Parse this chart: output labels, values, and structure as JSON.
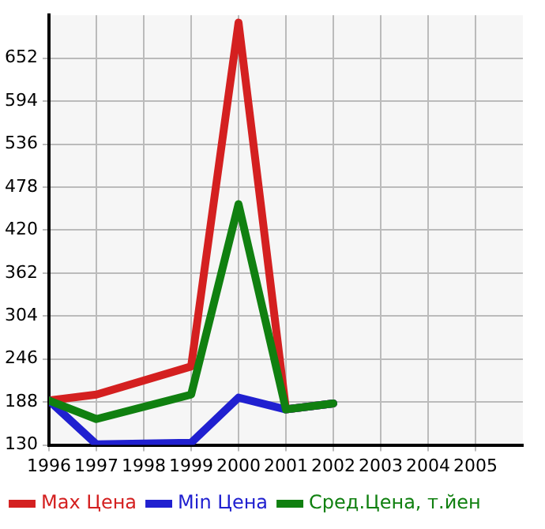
{
  "chart_data": {
    "type": "line",
    "xlim": [
      1996,
      2006
    ],
    "xticks": [
      1996,
      1997,
      1998,
      1999,
      2000,
      2001,
      2002,
      2003,
      2004,
      2005
    ],
    "ylim": [
      130,
      710
    ],
    "yticks": [
      130,
      188,
      246,
      304,
      362,
      420,
      478,
      536,
      594,
      652
    ],
    "grid": true,
    "legend": "bottom",
    "marker": "none",
    "series": [
      {
        "name": "Max Цена",
        "color": "#d42020",
        "x": [
          1996,
          1997,
          1999,
          2000,
          2001,
          2002
        ],
        "values": [
          190,
          198,
          236,
          700,
          178,
          186
        ]
      },
      {
        "name": "Min Цена",
        "color": "#2020d0",
        "x": [
          1996,
          1997,
          1999,
          2000,
          2001,
          2002
        ],
        "values": [
          190,
          131,
          133,
          194,
          178,
          186
        ]
      },
      {
        "name": "Сред.Цена, т.йен",
        "color": "#108010",
        "x": [
          1996,
          1997,
          1999,
          2000,
          2001,
          2002
        ],
        "values": [
          190,
          165,
          198,
          455,
          178,
          186
        ]
      }
    ]
  }
}
